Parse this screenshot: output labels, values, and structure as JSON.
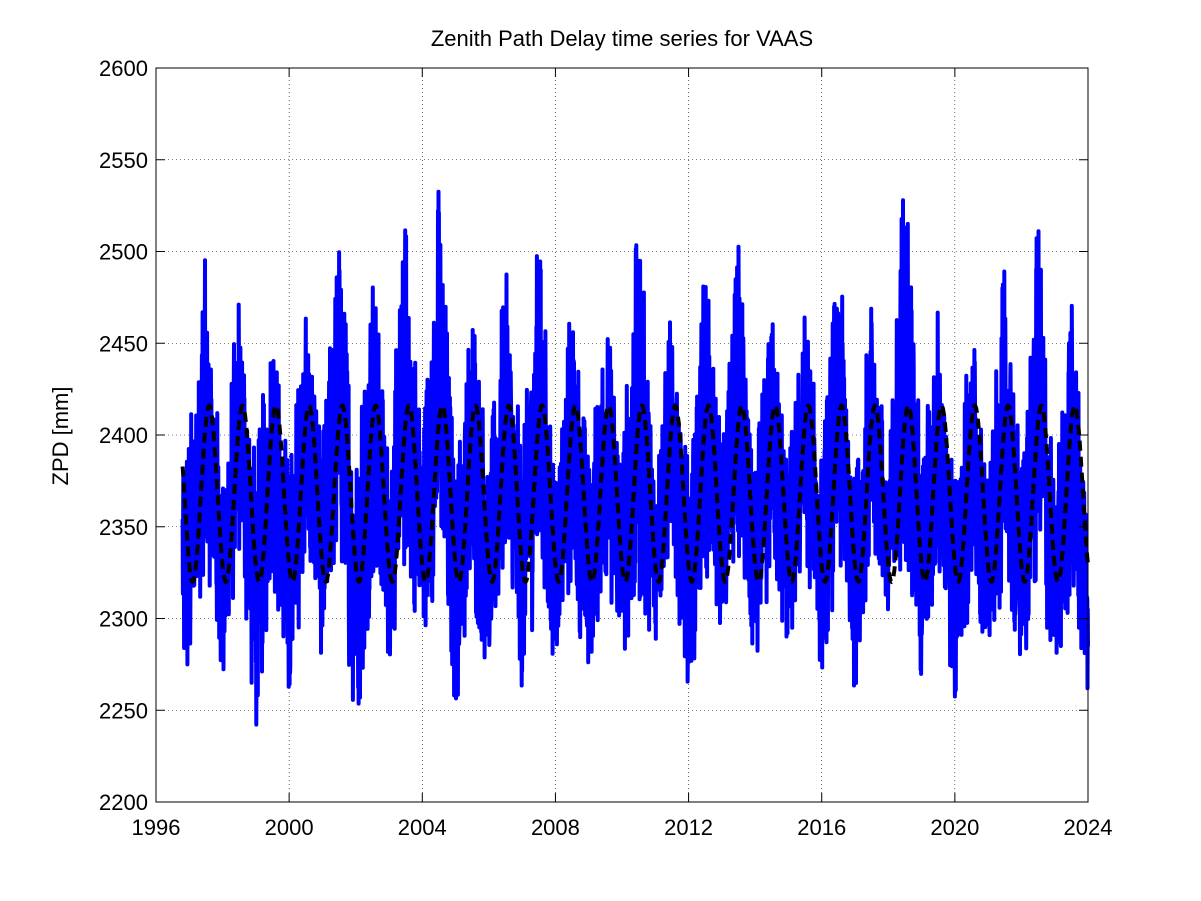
{
  "chart_data": {
    "type": "line",
    "title": "Zenith Path Delay time series for VAAS",
    "xlabel": "",
    "ylabel": "ZPD [mm]",
    "xlim": [
      1996,
      2024
    ],
    "ylim": [
      2200,
      2600
    ],
    "xticks": [
      1996,
      2000,
      2004,
      2008,
      2012,
      2016,
      2020,
      2024
    ],
    "yticks": [
      2200,
      2250,
      2300,
      2350,
      2400,
      2450,
      2500,
      2550,
      2600
    ],
    "grid": true,
    "legend": "none",
    "x_range_data": [
      1996.8,
      2024.0
    ],
    "series": [
      {
        "style": "solid",
        "color": "#0000ff",
        "x": [
          1997.0,
          1997.5,
          1998.0,
          1998.5,
          1999.0,
          1999.5,
          2000.0,
          2000.5,
          2001.0,
          2001.5,
          2002.0,
          2002.5,
          2003.0,
          2003.5,
          2004.0,
          2004.5,
          2005.0,
          2005.5,
          2006.0,
          2006.5,
          2007.0,
          2007.5,
          2008.0,
          2008.5,
          2009.0,
          2009.5,
          2010.0,
          2010.5,
          2011.0,
          2011.5,
          2012.0,
          2012.5,
          2013.0,
          2013.5,
          2014.0,
          2014.5,
          2015.0,
          2015.5,
          2016.0,
          2016.5,
          2017.0,
          2017.5,
          2018.0,
          2018.5,
          2019.0,
          2019.5,
          2020.0,
          2020.5,
          2021.0,
          2021.5,
          2022.0,
          2022.5,
          2023.0,
          2023.5,
          2024.0
        ],
        "max": [
          2408,
          2506,
          2380,
          2492,
          2390,
          2476,
          2385,
          2480,
          2400,
          2518,
          2398,
          2504,
          2392,
          2529,
          2402,
          2549,
          2380,
          2488,
          2391,
          2498,
          2393,
          2520,
          2380,
          2489,
          2390,
          2478,
          2395,
          2533,
          2378,
          2480,
          2386,
          2508,
          2395,
          2513,
          2391,
          2473,
          2390,
          2476,
          2391,
          2510,
          2378,
          2484,
          2380,
          2572,
          2390,
          2481,
          2376,
          2472,
          2378,
          2503,
          2386,
          2525,
          2377,
          2482,
          2370
        ],
        "min": [
          2255,
          2330,
          2253,
          2330,
          2228,
          2320,
          2238,
          2330,
          2272,
          2330,
          2230,
          2310,
          2272,
          2320,
          2281,
          2320,
          2244,
          2300,
          2264,
          2320,
          2256,
          2310,
          2264,
          2310,
          2251,
          2320,
          2273,
          2300,
          2284,
          2330,
          2250,
          2320,
          2283,
          2330,
          2262,
          2320,
          2275,
          2330,
          2264,
          2320,
          2255,
          2330,
          2284,
          2330,
          2252,
          2320,
          2245,
          2310,
          2261,
          2320,
          2256,
          2310,
          2268,
          2300,
          2256
        ]
      },
      {
        "style": "dashed",
        "color": "#000000",
        "mean": 2368,
        "amplitude": 48,
        "period_years": 1,
        "peak_phase_years": 0.6
      }
    ]
  }
}
